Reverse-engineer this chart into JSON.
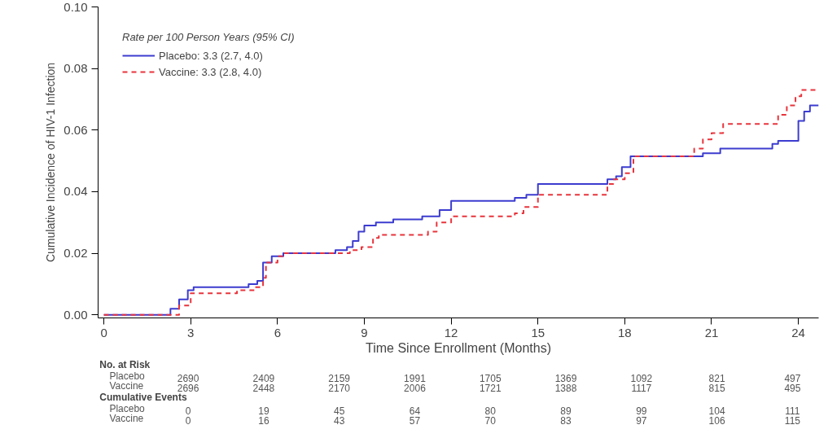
{
  "chart_data": {
    "type": "step",
    "xlabel": "Time Since Enrollment (Months)",
    "ylabel": "Cumulative Incidence of HIV-1 Infection",
    "legend_title": "Rate per 100 Person Years (95% CI)",
    "legend": "top left",
    "grid": false,
    "xlim": [
      -0.2,
      24.7
    ],
    "ylim": [
      -0.001,
      0.1
    ],
    "xticks": [
      0,
      3,
      6,
      9,
      12,
      15,
      18,
      21,
      24
    ],
    "yticks": [
      {
        "value": 0,
        "label": "0.00"
      },
      {
        "value": 0.02,
        "label": "0.02"
      },
      {
        "value": 0.04,
        "label": "0.04"
      },
      {
        "value": 0.06,
        "label": "0.06"
      },
      {
        "value": 0.08,
        "label": "0.08"
      },
      {
        "value": 0.1,
        "label": "0.10"
      }
    ],
    "series": [
      {
        "name": "Placebo: 3.3 (2.7, 4.0)",
        "color": "#3c3cd0",
        "line_style": "solid",
        "x": [
          0,
          2.3,
          2.6,
          2.9,
          3.1,
          5.0,
          5.3,
          5.5,
          5.8,
          6.2,
          8.0,
          8.4,
          8.6,
          8.8,
          9.0,
          9.4,
          10.0,
          11.0,
          11.6,
          12.0,
          14.2,
          14.6,
          15.0,
          17.4,
          17.7,
          17.9,
          18.2,
          20.7,
          21.3,
          23.1,
          23.3,
          24.0,
          24.2,
          24.4,
          24.7
        ],
        "values": [
          0,
          0.002,
          0.005,
          0.008,
          0.009,
          0.01,
          0.011,
          0.017,
          0.019,
          0.02,
          0.021,
          0.022,
          0.024,
          0.027,
          0.029,
          0.03,
          0.031,
          0.032,
          0.034,
          0.037,
          0.038,
          0.039,
          0.0425,
          0.044,
          0.045,
          0.048,
          0.0515,
          0.0525,
          0.054,
          0.0555,
          0.0565,
          0.063,
          0.066,
          0.068,
          0.068
        ]
      },
      {
        "name": "Vaccine: 3.3 (2.8, 4.0)",
        "color": "#e8343c",
        "line_style": "dashed",
        "x": [
          0,
          2.6,
          3.0,
          4.6,
          5.2,
          5.5,
          5.6,
          6.0,
          6.2,
          8.5,
          8.9,
          9.3,
          9.5,
          11.2,
          11.5,
          12.0,
          14.2,
          14.5,
          15.0,
          17.4,
          17.6,
          18.0,
          18.3,
          20.4,
          20.7,
          21.0,
          21.4,
          23.3,
          23.6,
          23.9,
          24.1,
          24.7
        ],
        "values": [
          0,
          0.003,
          0.007,
          0.008,
          0.009,
          0.012,
          0.017,
          0.019,
          0.02,
          0.021,
          0.022,
          0.025,
          0.026,
          0.027,
          0.03,
          0.032,
          0.033,
          0.035,
          0.039,
          0.0425,
          0.044,
          0.046,
          0.0515,
          0.054,
          0.057,
          0.059,
          0.062,
          0.065,
          0.068,
          0.071,
          0.073,
          0.073
        ]
      }
    ],
    "annotations": [
      "No. at Risk",
      "Placebo",
      "2690",
      "2409",
      "2159",
      "1991",
      "1705",
      "1369",
      "1092",
      "821",
      "497",
      "Vaccine",
      "2696",
      "2448",
      "2170",
      "2006",
      "1721",
      "1388",
      "1117",
      "815",
      "495",
      "Cumulative Events",
      "Placebo",
      "0",
      "19",
      "45",
      "64",
      "80",
      "89",
      "99",
      "104",
      "111",
      "Vaccine",
      "0",
      "16",
      "43",
      "57",
      "70",
      "83",
      "97",
      "106",
      "115"
    ]
  }
}
